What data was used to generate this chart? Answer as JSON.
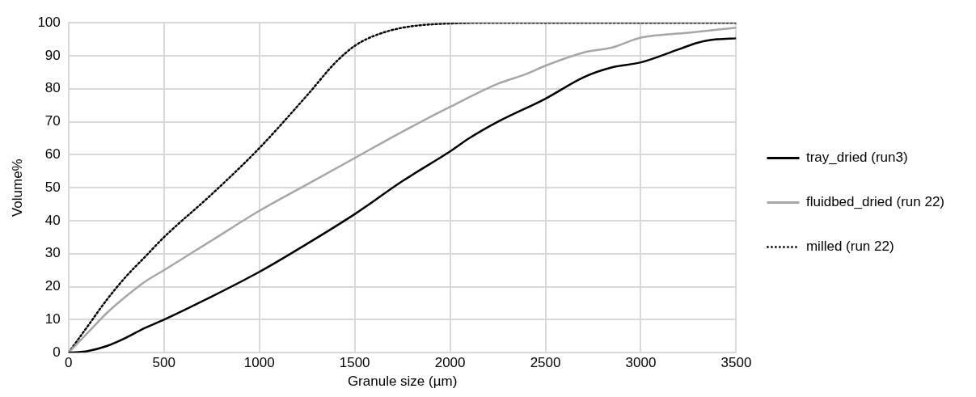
{
  "chart_data": {
    "type": "line",
    "xlabel": "Granule size (µm)",
    "ylabel": "Volume%",
    "xlim": [
      0,
      3500
    ],
    "xticks": [
      0,
      500,
      1000,
      1500,
      2000,
      2500,
      3000,
      3500
    ],
    "ylim": [
      0,
      100
    ],
    "yticks": [
      0,
      10,
      20,
      30,
      40,
      50,
      60,
      70,
      80,
      90,
      100
    ],
    "grid": true,
    "legend": "right",
    "marker": "none",
    "series": [
      {
        "name": "tray_dried (run3)",
        "color": "#000000",
        "line_style": "solid",
        "x": [
          0,
          100,
          200,
          300,
          400,
          500,
          750,
          1000,
          1250,
          1500,
          1750,
          2000,
          2100,
          2250,
          2500,
          2700,
          2850,
          3000,
          3200,
          3300,
          3400,
          3500
        ],
        "values": [
          0,
          0.5,
          2,
          4.5,
          7.5,
          10,
          17,
          24.5,
          33,
          42,
          52,
          61,
          65,
          70,
          77,
          83.5,
          86.5,
          88,
          92,
          94,
          95,
          95.3
        ]
      },
      {
        "name": "fluidbed_dried (run 22)",
        "color": "#a6a6a6",
        "line_style": "solid",
        "x": [
          0,
          100,
          200,
          300,
          400,
          500,
          750,
          1000,
          1250,
          1500,
          1750,
          2000,
          2250,
          2400,
          2500,
          2700,
          2850,
          3000,
          3250,
          3500
        ],
        "values": [
          0,
          6,
          12,
          17,
          21.5,
          25,
          34,
          43,
          51,
          59,
          67,
          74.5,
          81.5,
          84.5,
          87,
          91,
          92.5,
          95.5,
          97,
          98.5
        ]
      },
      {
        "name": "milled (run 22)",
        "color": "#000000",
        "line_style": "dotted",
        "x": [
          0,
          100,
          200,
          300,
          400,
          500,
          750,
          1000,
          1250,
          1400,
          1500,
          1600,
          1750,
          2000,
          2250,
          3500
        ],
        "values": [
          0,
          8,
          16,
          23,
          29,
          35,
          48,
          62,
          78,
          88,
          93,
          96,
          98.5,
          99.8,
          100,
          100
        ]
      }
    ]
  }
}
